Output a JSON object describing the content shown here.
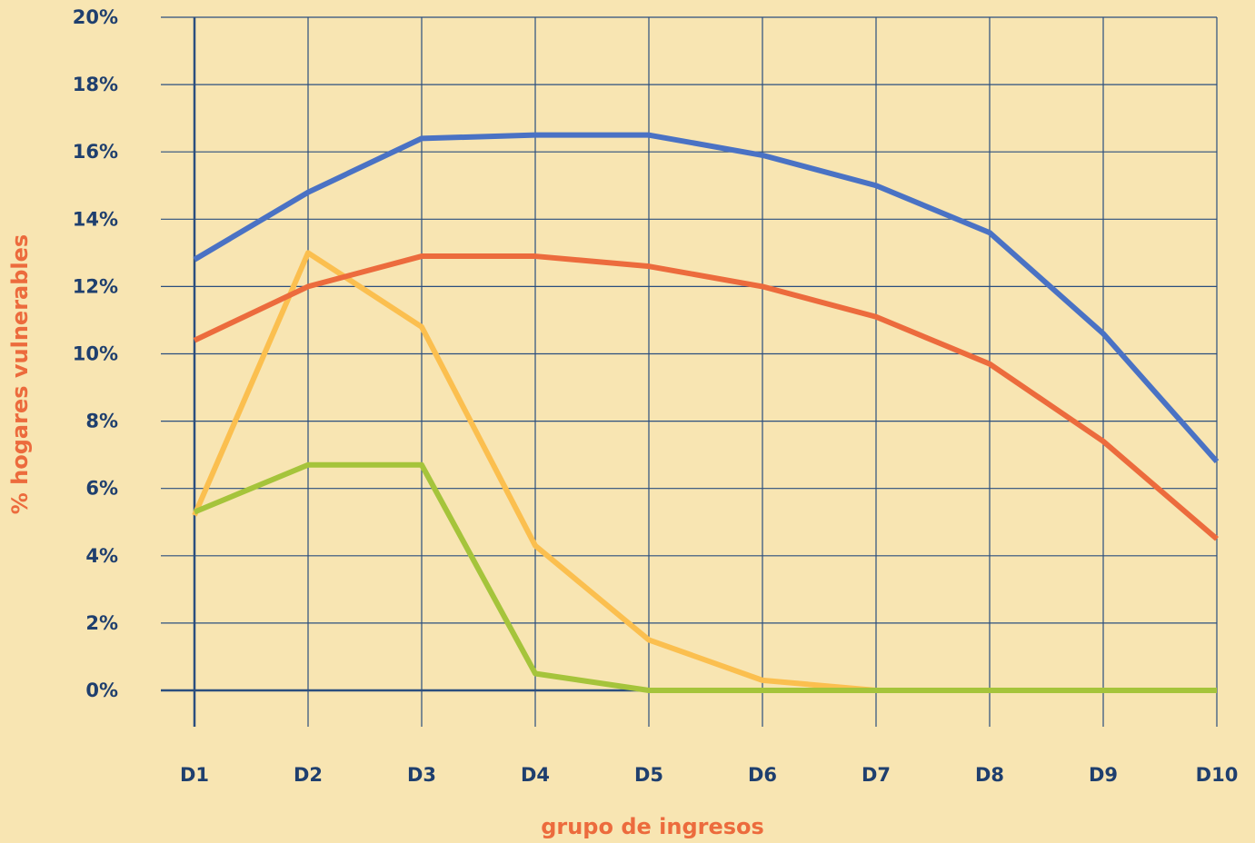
{
  "chart_data": {
    "type": "line",
    "xlabel": "grupo de ingresos",
    "ylabel": "% hogares vulnerables",
    "categories": [
      "D1",
      "D2",
      "D3",
      "D4",
      "D5",
      "D6",
      "D7",
      "D8",
      "D9",
      "D10"
    ],
    "ylim": [
      0,
      20
    ],
    "yticks": [
      "0%",
      "2%",
      "4%",
      "6%",
      "8%",
      "10%",
      "12%",
      "14%",
      "16%",
      "18%",
      "20%"
    ],
    "grid": true,
    "legend": "none",
    "series": [
      {
        "color": "#4a72c4",
        "values": [
          12.8,
          14.8,
          16.4,
          16.5,
          16.5,
          15.9,
          15.0,
          13.6,
          10.6,
          6.8
        ]
      },
      {
        "color": "#ec6b3d",
        "values": [
          10.4,
          12.0,
          12.9,
          12.9,
          12.6,
          12.0,
          11.1,
          9.7,
          7.4,
          4.5
        ]
      },
      {
        "color": "#fbbf4f",
        "values": [
          5.2,
          13.0,
          10.8,
          4.3,
          1.5,
          0.3,
          0.0,
          0.0,
          0.0,
          0.0
        ]
      },
      {
        "color": "#a5c43b",
        "values": [
          5.3,
          6.7,
          6.7,
          0.5,
          0.0,
          0.0,
          0.0,
          0.0,
          0.0,
          0.0
        ]
      }
    ],
    "colors": {
      "background": "#f8e5b2",
      "grid": "#2b4e7e",
      "tick_text": "#1f3f6e",
      "axis_title": "#ec6b3d"
    }
  }
}
